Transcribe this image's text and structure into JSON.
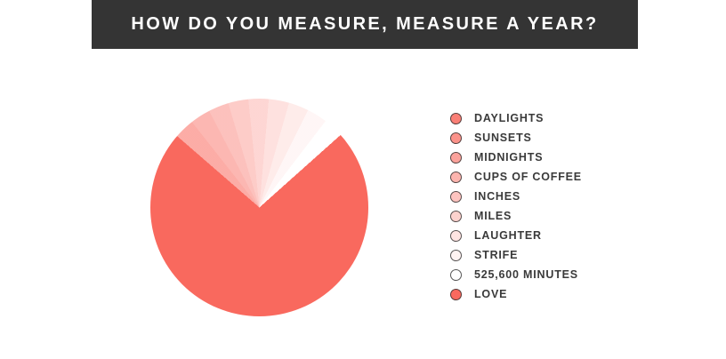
{
  "header": {
    "title": "HOW DO YOU MEASURE, MEASURE A YEAR?",
    "bg_color": "#343434",
    "text_color": "#ffffff"
  },
  "chart_data": {
    "type": "pie",
    "title": "HOW DO YOU MEASURE, MEASURE A YEAR?",
    "unit": "percent",
    "start_angle_deg": -49,
    "legend_position": "right",
    "accent_color": "#f9695e",
    "slices": [
      {
        "label": "DAYLIGHTS",
        "value": 3,
        "color": "rgba(249,105,94,0.55)",
        "dot_color": "rgba(249,105,94,0.85)"
      },
      {
        "label": "SUNSETS",
        "value": 3,
        "color": "rgba(249,105,94,0.48)",
        "dot_color": "rgba(249,105,94,0.73)"
      },
      {
        "label": "MIDNIGHTS",
        "value": 3,
        "color": "rgba(249,105,94,0.41)",
        "dot_color": "rgba(249,105,94,0.62)"
      },
      {
        "label": "CUPS OF COFFEE",
        "value": 3,
        "color": "rgba(249,105,94,0.34)",
        "dot_color": "rgba(249,105,94,0.50)"
      },
      {
        "label": "INCHES",
        "value": 3,
        "color": "rgba(249,105,94,0.27)",
        "dot_color": "rgba(249,105,94,0.40)"
      },
      {
        "label": "MILES",
        "value": 3,
        "color": "rgba(249,105,94,0.20)",
        "dot_color": "rgba(249,105,94,0.30)"
      },
      {
        "label": "LAUGHTER",
        "value": 3,
        "color": "rgba(249,105,94,0.13)",
        "dot_color": "rgba(249,105,94,0.18)"
      },
      {
        "label": "STRIFE",
        "value": 3,
        "color": "rgba(249,105,94,0.06)",
        "dot_color": "rgba(249,105,94,0.08)"
      },
      {
        "label": "525,600 MINUTES",
        "value": 3,
        "color": "rgba(249,105,94,0.00)",
        "dot_color": "#ffffff"
      },
      {
        "label": "LOVE",
        "value": 73,
        "color": "#f9695e",
        "dot_color": "#f9695e"
      }
    ]
  }
}
